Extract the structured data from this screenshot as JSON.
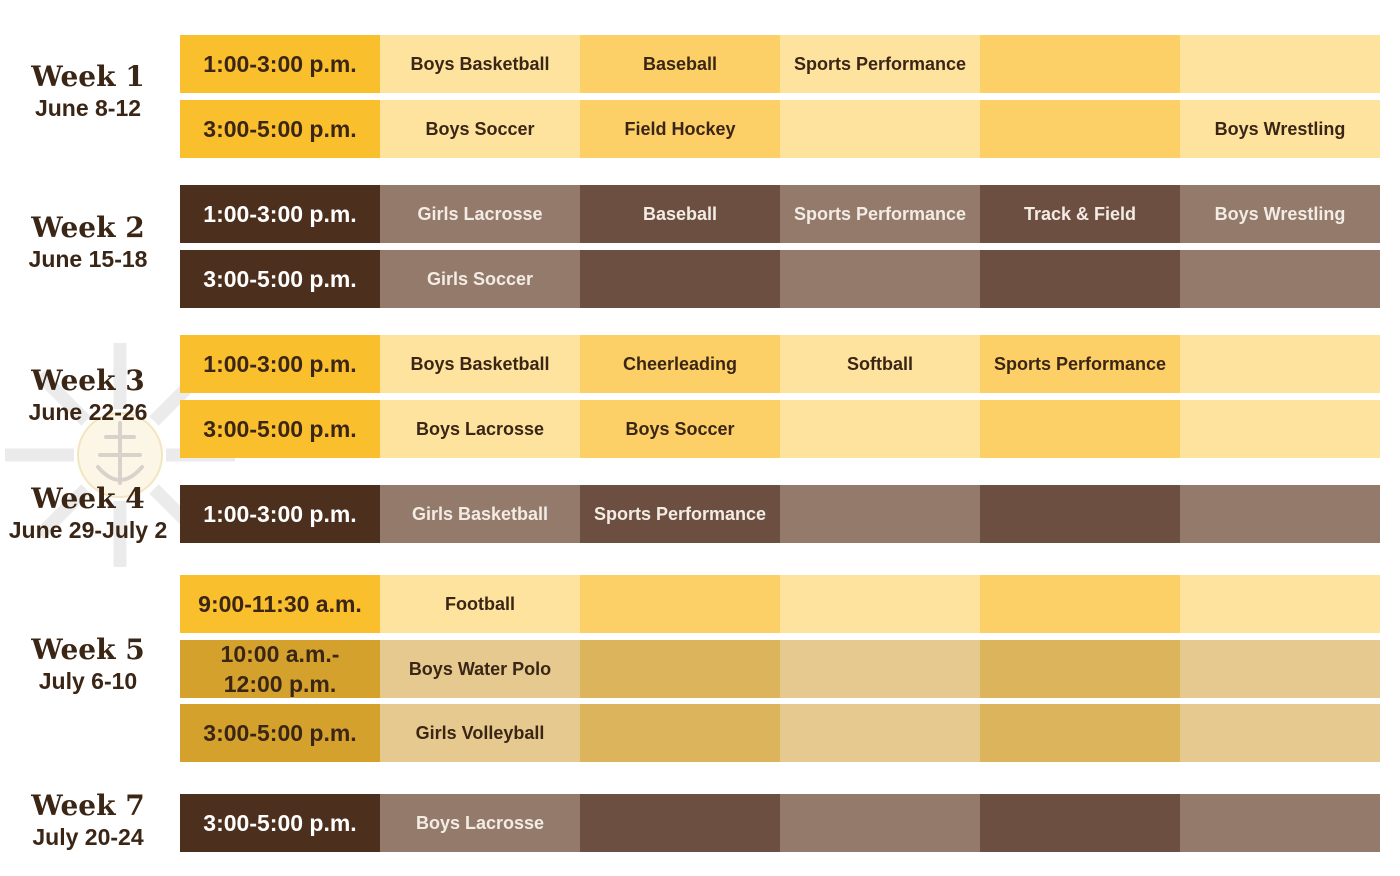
{
  "colors": {
    "gold_time": "#f9bf2d",
    "gold_a": "#fee39f",
    "gold_b": "#fdd067",
    "brown_time": "#4d2f1d",
    "brown_a": "#947a6b",
    "brown_b": "#6d4f42",
    "amber_time": "#d4a22c",
    "amber_b": "#dbb45c",
    "amber_a": "#e6c98e",
    "text_dark": "#3b2616",
    "text_light": "#f3ece4"
  },
  "watermark": {
    "icon": "sunburst-anchor-cross-icon"
  },
  "weeks": [
    {
      "name": "Week 1",
      "dates": "June 8-12",
      "theme": "gold",
      "rows": [
        {
          "time": "1:00-3:00 p.m.",
          "cells": [
            "Boys Basketball",
            "Baseball",
            "Sports Performance",
            "",
            ""
          ]
        },
        {
          "time": "3:00-5:00 p.m.",
          "cells": [
            "Boys Soccer",
            "Field Hockey",
            "",
            "",
            "Boys Wrestling"
          ]
        }
      ]
    },
    {
      "name": "Week 2",
      "dates": "June 15-18",
      "theme": "brown",
      "rows": [
        {
          "time": "1:00-3:00 p.m.",
          "cells": [
            "Girls Lacrosse",
            "Baseball",
            "Sports Performance",
            "Track & Field",
            "Boys Wrestling"
          ]
        },
        {
          "time": "3:00-5:00 p.m.",
          "cells": [
            "Girls Soccer",
            "",
            "",
            "",
            ""
          ]
        }
      ]
    },
    {
      "name": "Week 3",
      "dates": "June 22-26",
      "theme": "gold",
      "rows": [
        {
          "time": "1:00-3:00 p.m.",
          "cells": [
            "Boys Basketball",
            "Cheerleading",
            "Softball",
            "Sports Performance",
            ""
          ]
        },
        {
          "time": "3:00-5:00 p.m.",
          "cells": [
            "Boys Lacrosse",
            "Boys Soccer",
            "",
            "",
            ""
          ]
        }
      ]
    },
    {
      "name": "Week 4",
      "dates": "June 29-July 2",
      "theme": "brown",
      "rows": [
        {
          "time": "1:00-3:00 p.m.",
          "cells": [
            "Girls Basketball",
            "Sports Performance",
            "",
            "",
            ""
          ]
        }
      ]
    },
    {
      "name": "Week 5",
      "dates": "July 6-10",
      "theme": "gold",
      "rows": [
        {
          "time": "9:00-11:30 a.m.",
          "cells": [
            "Football",
            "",
            "",
            "",
            ""
          ]
        },
        {
          "time": "10:00 a.m.-\n12:00  p.m.",
          "cells": [
            "Boys Water Polo",
            "",
            "",
            "",
            ""
          ],
          "variant": "amber"
        },
        {
          "time": "3:00-5:00 p.m.",
          "cells": [
            "Girls Volleyball",
            "",
            "",
            "",
            ""
          ],
          "variant": "amber"
        }
      ]
    },
    {
      "name": "Week 7",
      "dates": "July 20-24",
      "theme": "brown",
      "rows": [
        {
          "time": "3:00-5:00 p.m.",
          "cells": [
            "Boys Lacrosse",
            "",
            "",
            "",
            ""
          ]
        }
      ]
    }
  ]
}
